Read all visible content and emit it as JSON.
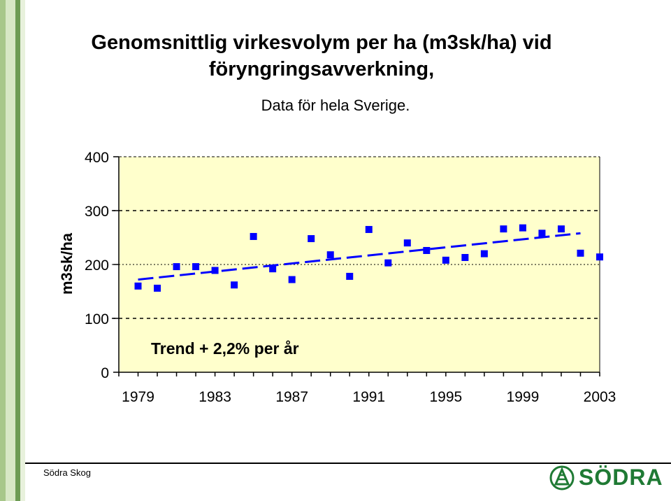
{
  "title": {
    "line1": "Genomsnittlig virkesvolym per ha (m3sk/ha) vid",
    "line2": "föryngringsavverkning,"
  },
  "subtitle": "Data för hela Sverige.",
  "footer": {
    "org": "Södra Skog",
    "logo_text": "SÖDRA",
    "logo_color": "#1f7a34"
  },
  "colors": {
    "markers": "#0000ff",
    "trend": "#0000ff",
    "plot_bg": "#ffffcc"
  },
  "chart_data": {
    "type": "scatter",
    "title": "Genomsnittlig virkesvolym per ha (m3sk/ha) vid föryngringsavverkning,",
    "subtitle": "Data för hela Sverige.",
    "xlabel": "",
    "ylabel": "m3sk/ha",
    "xlim": [
      1978,
      2003
    ],
    "ylim": [
      0,
      400
    ],
    "yticks": [
      0,
      100,
      200,
      300,
      400
    ],
    "xticks": [
      1979,
      1983,
      1987,
      1991,
      1995,
      1999,
      2003
    ],
    "grid": "dashed horizontal at 100 and 300",
    "series": [
      {
        "x": [
          1979,
          1980,
          1981,
          1982,
          1983,
          1984,
          1985,
          1986,
          1987,
          1988,
          1989,
          1990,
          1991,
          1992,
          1993,
          1994,
          1995,
          1996,
          1997,
          1998,
          1999,
          2000,
          2001,
          2002,
          2003
        ],
        "values": [
          160,
          156,
          196,
          196,
          189,
          162,
          252,
          192,
          172,
          248,
          218,
          178,
          265,
          203,
          240,
          226,
          208,
          213,
          220,
          266,
          268,
          258,
          266,
          221,
          214
        ]
      }
    ],
    "trend": {
      "label": "Trend + 2,2% per år",
      "x_start": 1979,
      "y_start": 172,
      "x_end": 2002,
      "y_end": 258
    }
  }
}
